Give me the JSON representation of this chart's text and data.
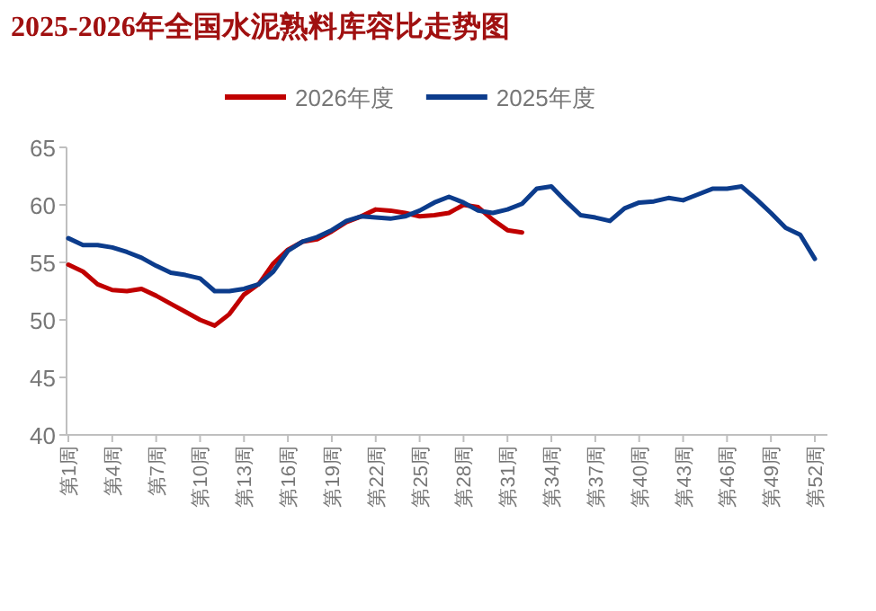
{
  "chart_data": {
    "type": "line",
    "title": "2025-2026年全国水泥熟料库容比走势图",
    "categories": [
      "第1周",
      null,
      null,
      "第4周",
      null,
      null,
      "第7周",
      null,
      null,
      "第10周",
      null,
      null,
      "第13周",
      null,
      null,
      "第16周",
      null,
      null,
      "第19周",
      null,
      null,
      "第22周",
      null,
      null,
      "第25周",
      null,
      null,
      "第28周",
      null,
      null,
      "第31周",
      null,
      null,
      "第34周",
      null,
      null,
      "第37周",
      null,
      null,
      "第40周",
      null,
      null,
      "第43周",
      null,
      null,
      "第46周",
      null,
      null,
      "第49周",
      null,
      null,
      "第52周"
    ],
    "series": [
      {
        "name": "2026年度",
        "color": "#c00000",
        "values": [
          54.8,
          54.2,
          53.1,
          52.6,
          52.5,
          52.7,
          52.1,
          51.4,
          50.7,
          50.0,
          49.5,
          50.5,
          52.2,
          53.1,
          54.9,
          56.1,
          56.8,
          57.0,
          57.7,
          58.5,
          59.0,
          59.6,
          59.5,
          59.3,
          59.0,
          59.1,
          59.3,
          60.0,
          59.8,
          58.7,
          57.8,
          57.6,
          null,
          null,
          null,
          null,
          null,
          null,
          null,
          null,
          null,
          null,
          null,
          null,
          null,
          null,
          null,
          null,
          null,
          null,
          null,
          null
        ]
      },
      {
        "name": "2025年度",
        "color": "#0c3c8c",
        "values": [
          57.1,
          56.5,
          56.5,
          56.3,
          55.9,
          55.4,
          54.7,
          54.1,
          53.9,
          53.6,
          52.5,
          52.5,
          52.7,
          53.1,
          54.2,
          56.0,
          56.8,
          57.2,
          57.8,
          58.6,
          59.0,
          58.9,
          58.8,
          59.0,
          59.5,
          60.2,
          60.7,
          60.2,
          59.5,
          59.3,
          59.6,
          60.1,
          61.4,
          61.6,
          60.3,
          59.1,
          58.9,
          58.6,
          59.7,
          60.2,
          60.3,
          60.6,
          60.4,
          60.9,
          61.4,
          61.4,
          61.6,
          60.5,
          59.3,
          58.0,
          57.4,
          55.3
        ]
      }
    ],
    "ylim": [
      40,
      65
    ],
    "yticks": [
      40,
      45,
      50,
      55,
      60,
      65
    ],
    "grid": false,
    "legend": "top",
    "marker": "none",
    "line_style": "solid"
  }
}
